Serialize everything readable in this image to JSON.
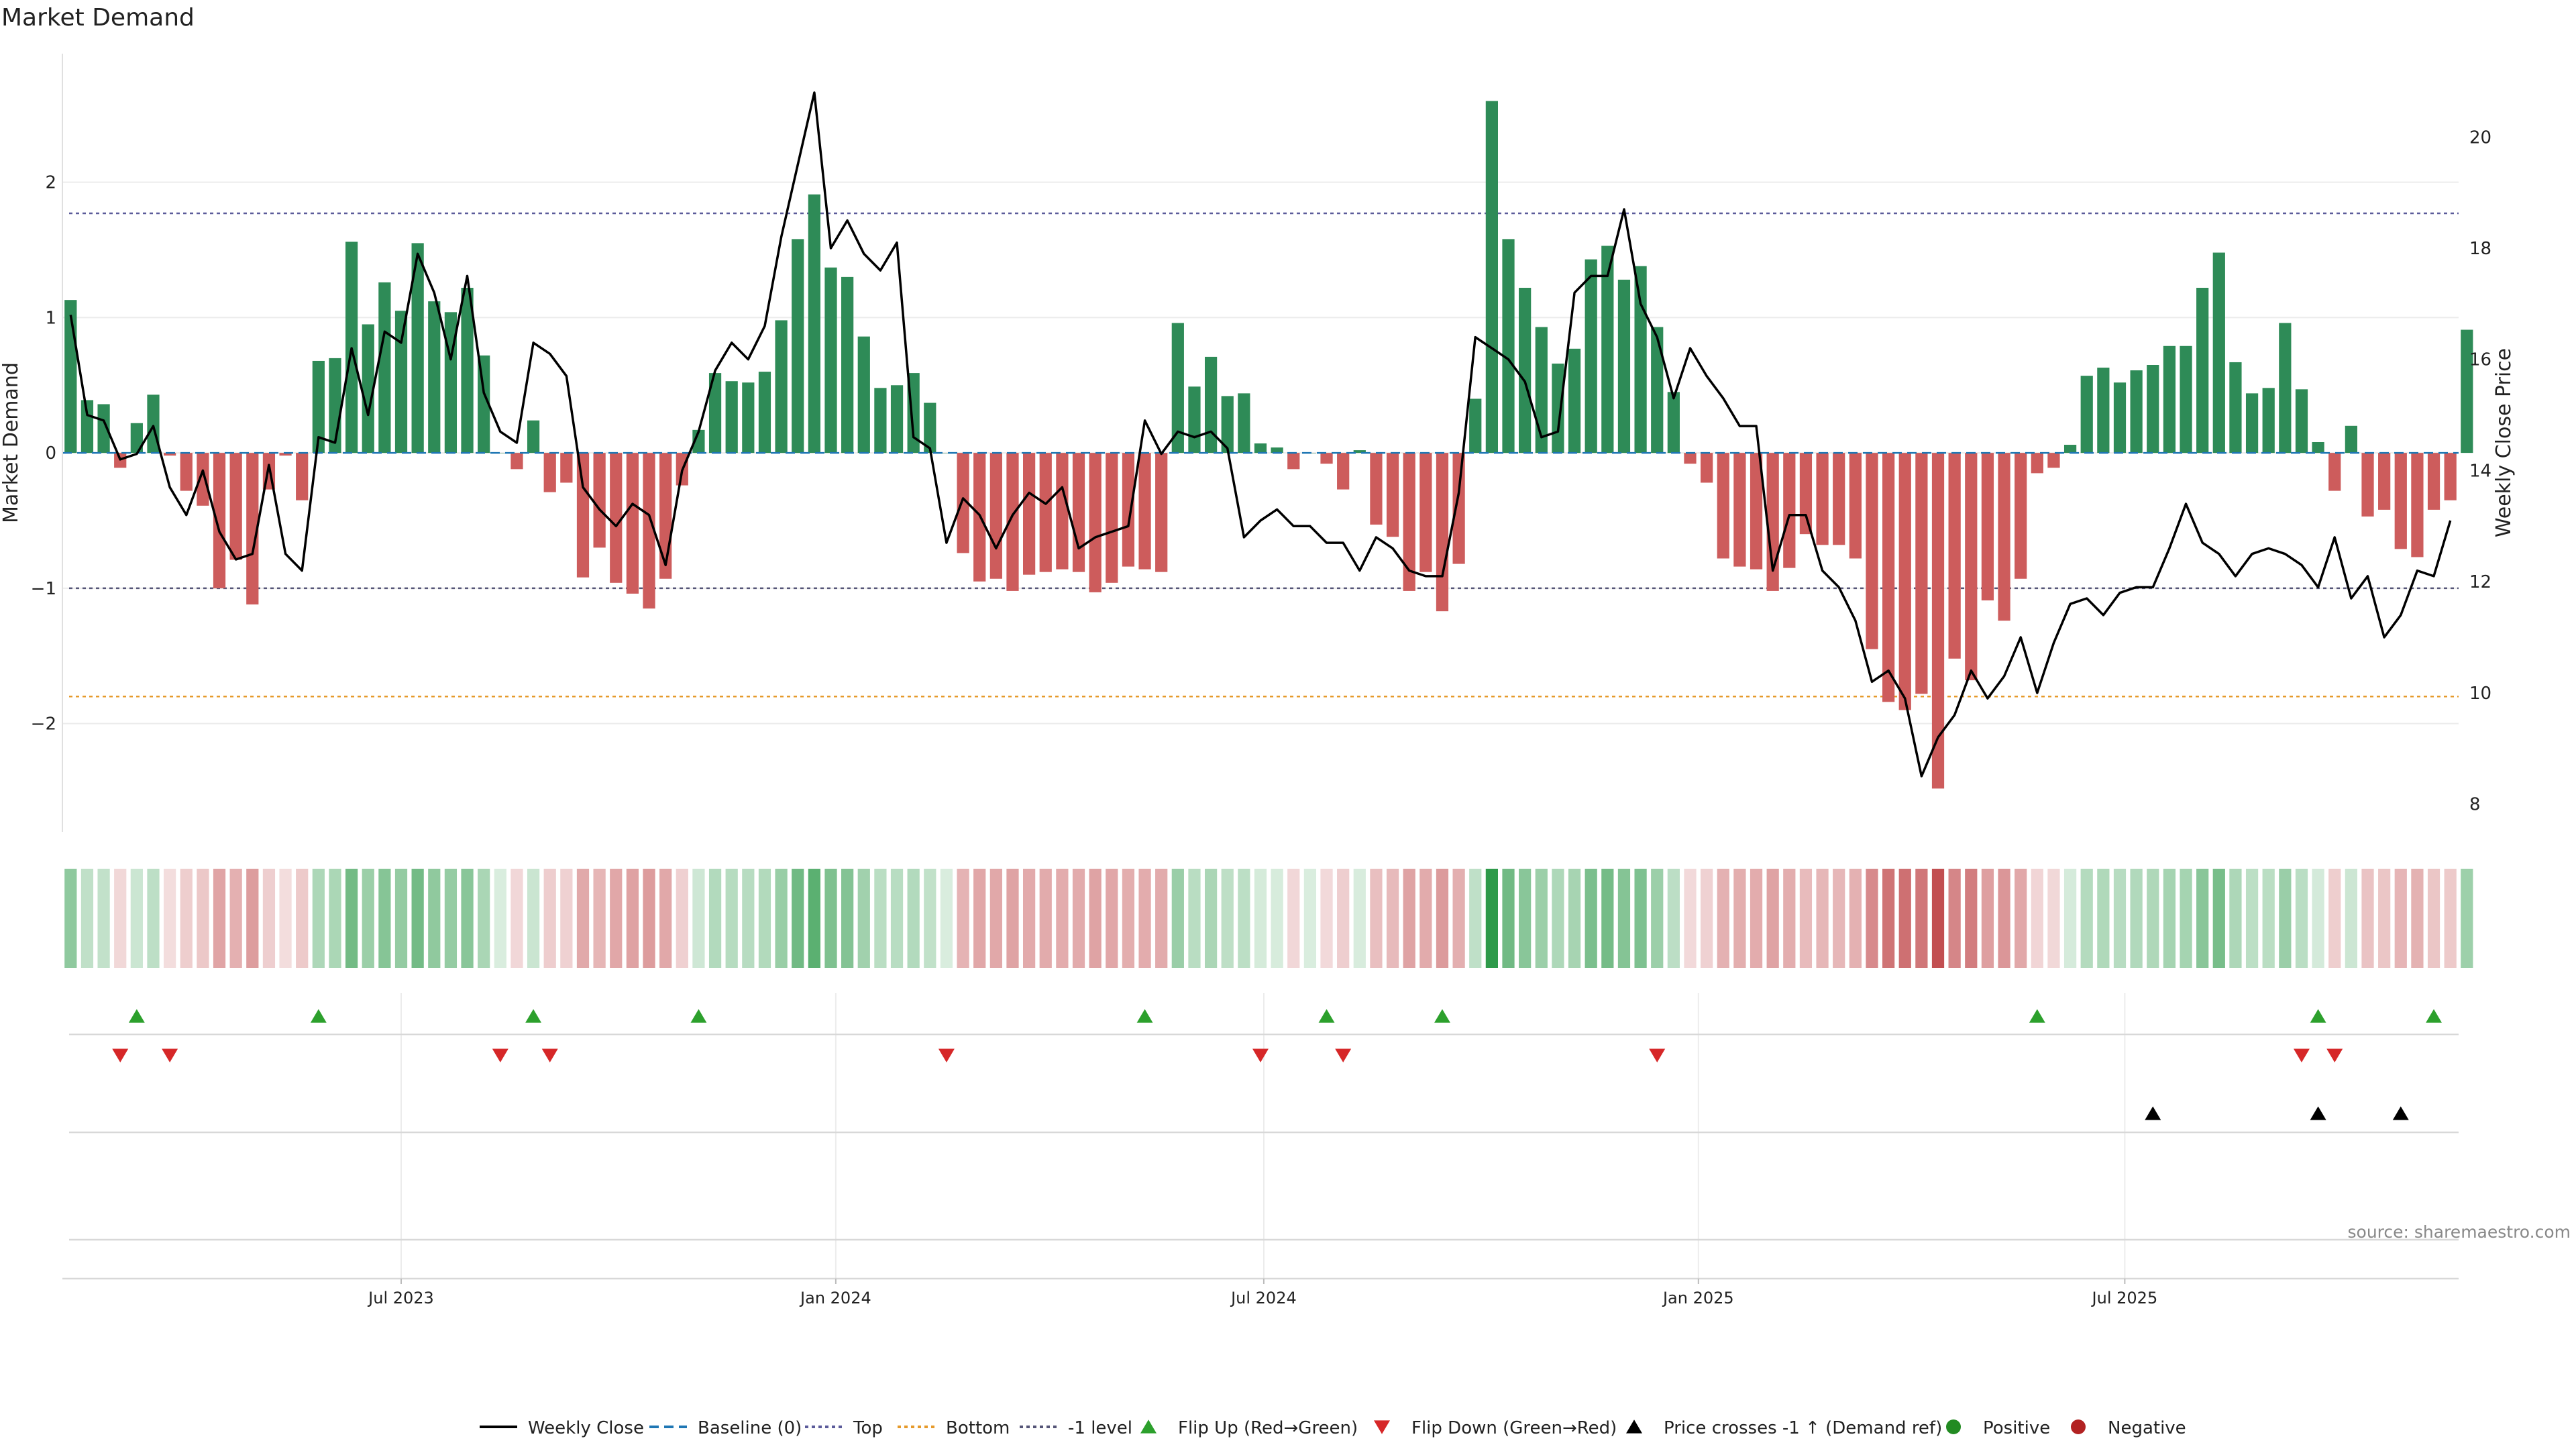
{
  "chart_data": {
    "type": "bar+line",
    "title": "Market Demand",
    "ylabel_left": "Market Demand",
    "ylabel_right": "Weekly Close Price",
    "ylim_left": [
      -2.8,
      2.95
    ],
    "ylim_right": [
      7.5,
      21.5
    ],
    "yticks_left": [
      2,
      1,
      0,
      -1,
      -2
    ],
    "yticks_left_labels": [
      "2",
      "1",
      "0",
      "−1",
      "−2"
    ],
    "yticks_right": [
      20,
      18,
      16,
      14,
      12,
      10,
      8
    ],
    "x_weeks": 145,
    "x_ticks": [
      {
        "label": "Jul 2023",
        "week": 20.5
      },
      {
        "label": "Jan 2024",
        "week": 46.8
      },
      {
        "label": "Jul 2024",
        "week": 72.7
      },
      {
        "label": "Jan 2025",
        "week": 99.0
      },
      {
        "label": "Jul 2025",
        "week": 124.8
      }
    ],
    "reference_lines": {
      "top": 1.77,
      "bottom": -1.8,
      "minus_one": -1.0,
      "baseline": 0
    },
    "demand": [
      1.13,
      0.39,
      0.36,
      -0.11,
      0.22,
      0.43,
      -0.02,
      -0.28,
      -0.39,
      -1.0,
      -0.79,
      -1.12,
      -0.27,
      -0.02,
      -0.35,
      0.68,
      0.7,
      1.56,
      0.95,
      1.26,
      1.05,
      1.55,
      1.12,
      1.04,
      1.22,
      0.72,
      0.0,
      -0.12,
      0.24,
      -0.29,
      -0.22,
      -0.92,
      -0.7,
      -0.96,
      -1.04,
      -1.15,
      -0.93,
      -0.24,
      0.17,
      0.59,
      0.53,
      0.52,
      0.6,
      0.98,
      1.58,
      1.91,
      1.37,
      1.3,
      0.86,
      0.48,
      0.5,
      0.59,
      0.37,
      0.0,
      -0.74,
      -0.95,
      -0.93,
      -1.02,
      -0.9,
      -0.88,
      -0.86,
      -0.88,
      -1.03,
      -0.96,
      -0.84,
      -0.86,
      -0.88,
      0.96,
      0.49,
      0.71,
      0.42,
      0.44,
      0.07,
      0.04,
      -0.12,
      0.0,
      -0.08,
      -0.27,
      0.02,
      -0.53,
      -0.62,
      -1.02,
      -0.88,
      -1.17,
      -0.82,
      0.4,
      2.6,
      1.58,
      1.22,
      0.93,
      0.66,
      0.77,
      1.43,
      1.53,
      1.28,
      1.38,
      0.93,
      0.45,
      -0.08,
      -0.22,
      -0.78,
      -0.84,
      -0.86,
      -1.02,
      -0.85,
      -0.6,
      -0.68,
      -0.68,
      -0.78,
      -1.45,
      -1.84,
      -1.9,
      -1.78,
      -2.48,
      -1.52,
      -1.68,
      -1.09,
      -1.24,
      -0.93,
      -0.15,
      -0.11,
      0.06,
      0.57,
      0.63,
      0.52,
      0.61,
      0.65,
      0.79,
      0.79,
      1.22,
      1.48,
      0.67,
      0.44,
      0.48,
      0.96,
      0.47,
      0.08,
      -0.28,
      0.2,
      -0.47,
      -0.42,
      -0.71,
      -0.77,
      -0.42,
      -0.35,
      0.91
    ],
    "weekly_close": [
      16.8,
      15.0,
      14.9,
      14.2,
      14.3,
      14.8,
      13.7,
      13.2,
      14.0,
      12.9,
      12.4,
      12.5,
      14.1,
      12.5,
      12.2,
      14.6,
      14.5,
      16.2,
      15.0,
      16.5,
      16.3,
      17.9,
      17.2,
      16.0,
      17.5,
      15.4,
      14.7,
      14.5,
      16.3,
      16.1,
      15.7,
      13.7,
      13.3,
      13.0,
      13.4,
      13.2,
      12.3,
      14.0,
      14.7,
      15.8,
      16.3,
      16.0,
      16.6,
      18.2,
      19.5,
      20.8,
      18.0,
      18.5,
      17.9,
      17.6,
      18.1,
      14.6,
      14.4,
      12.7,
      13.5,
      13.2,
      12.6,
      13.2,
      13.6,
      13.4,
      13.7,
      12.6,
      12.8,
      12.9,
      13.0,
      14.9,
      14.3,
      14.7,
      14.6,
      14.7,
      14.4,
      12.8,
      13.1,
      13.3,
      13.0,
      13.0,
      12.7,
      12.7,
      12.2,
      12.8,
      12.6,
      12.2,
      12.1,
      12.1,
      13.6,
      16.4,
      16.2,
      16.0,
      15.6,
      14.6,
      14.7,
      17.2,
      17.5,
      17.5,
      18.7,
      17.0,
      16.4,
      15.3,
      16.2,
      15.7,
      15.3,
      14.8,
      14.8,
      12.2,
      13.2,
      13.2,
      12.2,
      11.9,
      11.3,
      10.2,
      10.4,
      9.9,
      8.5,
      9.2,
      9.6,
      10.4,
      9.9,
      10.3,
      11.0,
      10.0,
      10.9,
      11.6,
      11.7,
      11.4,
      11.8,
      11.9,
      11.9,
      12.6,
      13.4,
      12.7,
      12.5,
      12.1,
      12.5,
      12.6,
      12.5,
      12.3,
      11.9,
      12.8,
      11.7,
      12.1,
      11.0,
      11.4,
      12.2,
      12.1,
      13.1
    ],
    "flip_up_weeks": [
      4,
      15,
      28,
      38,
      65,
      76,
      83,
      119,
      136,
      143
    ],
    "flip_down_weeks": [
      3,
      6,
      26,
      29,
      53,
      72,
      77,
      96,
      135,
      137
    ],
    "price_cross_weeks": [
      126,
      136,
      141
    ],
    "legend": [
      "Weekly Close",
      "Baseline (0)",
      "Top",
      "Bottom",
      "-1 level",
      "Flip Up (Red→Green)",
      "Flip Down (Green→Red)",
      "Price crosses -1 ↑ (Demand ref)",
      "Positive",
      "Negative"
    ],
    "colors": {
      "positive": "#2e8b57",
      "negative": "#cd5c5c",
      "line": "#000000",
      "baseline": "#1f77b4",
      "top": "#5b5b9a",
      "bottom": "#e69a2b",
      "minus_one": "#555577",
      "flip_up": "#2ca02c",
      "flip_down": "#d62728",
      "cross": "#000000",
      "legend_positive": "#228b22",
      "legend_negative": "#b22222"
    }
  },
  "source_text": "source: sharemaestro.com"
}
